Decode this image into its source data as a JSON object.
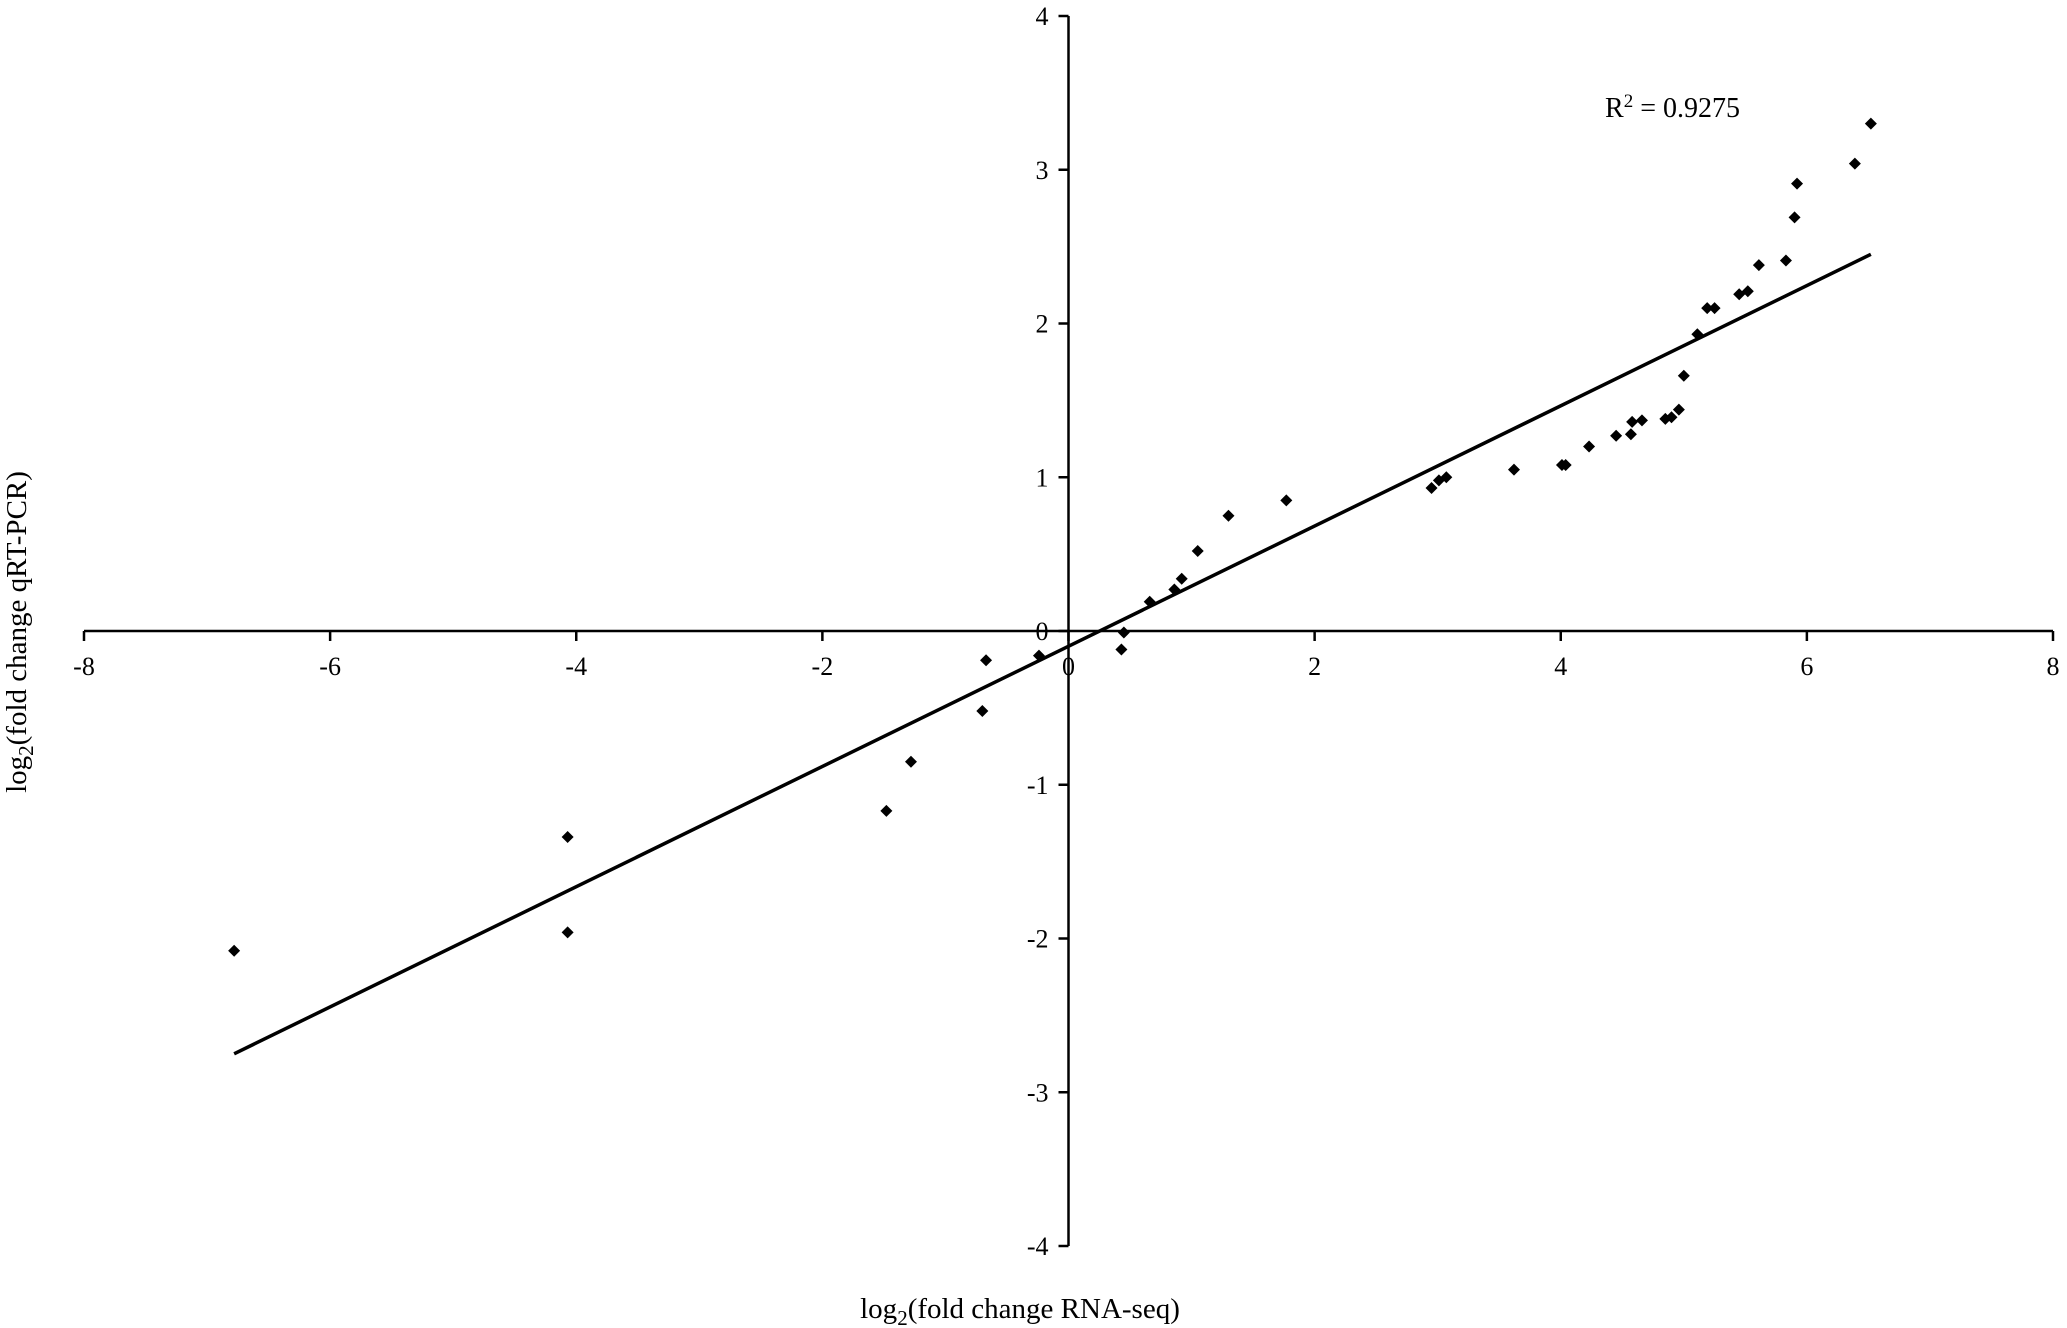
{
  "chart_data": {
    "type": "scatter",
    "title": "",
    "xlabel": {
      "prefix": "log",
      "sub": "2",
      "suffix": "(fold change RNA-seq)"
    },
    "ylabel": {
      "prefix": "log",
      "sub": "2",
      "suffix": "(fold change qRT-PCR)"
    },
    "xlim": [
      -8,
      8
    ],
    "ylim": [
      -4,
      4
    ],
    "xticks": [
      "-8",
      "-6",
      "-4",
      "-2",
      "0",
      "2",
      "4",
      "6",
      "8"
    ],
    "yticks": [
      "-4",
      "-3",
      "-2",
      "-1",
      "0",
      "1",
      "2",
      "3",
      "4"
    ],
    "grid": false,
    "legend": "none",
    "marker": "diamond",
    "point_color": "#000000",
    "annotation": {
      "text": "R",
      "sup": "2",
      "rest": " = 0.9275"
    },
    "trendline": {
      "x": [
        -6.78,
        6.52
      ],
      "y": [
        -2.75,
        2.45
      ]
    },
    "points": [
      {
        "x": -6.78,
        "y": -2.08
      },
      {
        "x": -4.07,
        "y": -1.34
      },
      {
        "x": -4.07,
        "y": -1.96
      },
      {
        "x": -1.48,
        "y": -1.17
      },
      {
        "x": -1.28,
        "y": -0.85
      },
      {
        "x": -0.7,
        "y": -0.52
      },
      {
        "x": -0.67,
        "y": -0.19
      },
      {
        "x": -0.24,
        "y": -0.16
      },
      {
        "x": 0.43,
        "y": -0.12
      },
      {
        "x": 0.45,
        "y": -0.01
      },
      {
        "x": 0.66,
        "y": 0.19
      },
      {
        "x": 0.86,
        "y": 0.27
      },
      {
        "x": 0.92,
        "y": 0.34
      },
      {
        "x": 1.05,
        "y": 0.52
      },
      {
        "x": 1.3,
        "y": 0.75
      },
      {
        "x": 1.77,
        "y": 0.85
      },
      {
        "x": 2.95,
        "y": 0.93
      },
      {
        "x": 3.01,
        "y": 0.98
      },
      {
        "x": 3.07,
        "y": 1.0
      },
      {
        "x": 3.62,
        "y": 1.05
      },
      {
        "x": 4.01,
        "y": 1.08
      },
      {
        "x": 4.04,
        "y": 1.08
      },
      {
        "x": 4.23,
        "y": 1.2
      },
      {
        "x": 4.45,
        "y": 1.27
      },
      {
        "x": 4.57,
        "y": 1.28
      },
      {
        "x": 4.58,
        "y": 1.36
      },
      {
        "x": 4.66,
        "y": 1.37
      },
      {
        "x": 4.85,
        "y": 1.38
      },
      {
        "x": 4.9,
        "y": 1.39
      },
      {
        "x": 4.96,
        "y": 1.44
      },
      {
        "x": 5.0,
        "y": 1.66
      },
      {
        "x": 5.11,
        "y": 1.93
      },
      {
        "x": 5.19,
        "y": 2.1
      },
      {
        "x": 5.25,
        "y": 2.1
      },
      {
        "x": 5.45,
        "y": 2.19
      },
      {
        "x": 5.52,
        "y": 2.21
      },
      {
        "x": 5.61,
        "y": 2.38
      },
      {
        "x": 5.83,
        "y": 2.41
      },
      {
        "x": 5.9,
        "y": 2.69
      },
      {
        "x": 5.92,
        "y": 2.91
      },
      {
        "x": 6.39,
        "y": 3.04
      },
      {
        "x": 6.52,
        "y": 3.3
      }
    ]
  }
}
